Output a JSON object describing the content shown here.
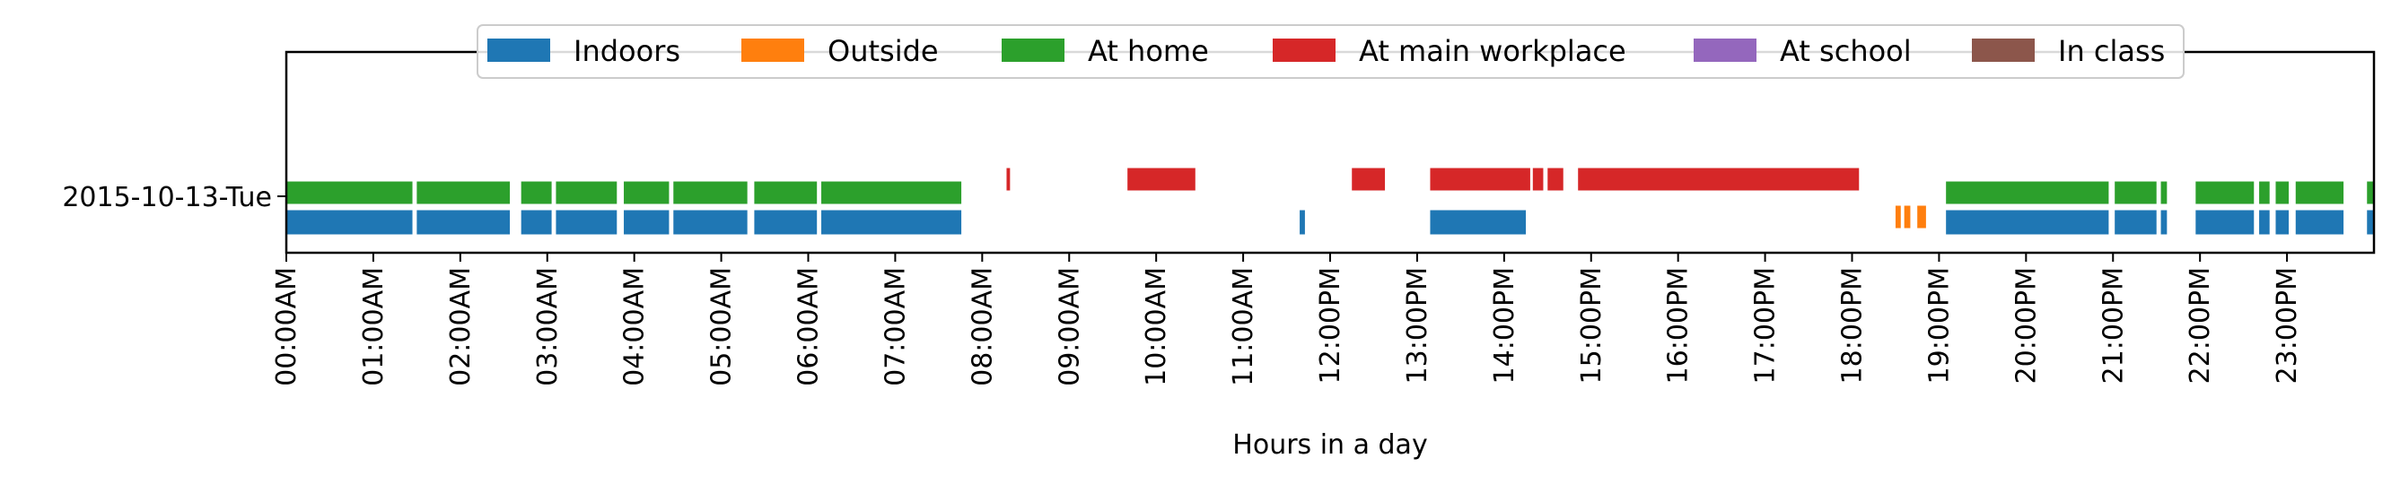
{
  "chart_data": {
    "type": "timeline",
    "title": "",
    "xlabel": "Hours in a day",
    "ylabel": "",
    "xlim": [
      0,
      24
    ],
    "x_ticks": [
      0,
      1,
      2,
      3,
      4,
      5,
      6,
      7,
      8,
      9,
      10,
      11,
      12,
      13,
      14,
      15,
      16,
      17,
      18,
      19,
      20,
      21,
      22,
      23
    ],
    "x_tick_labels": [
      "00:00AM",
      "01:00AM",
      "02:00AM",
      "03:00AM",
      "04:00AM",
      "05:00AM",
      "06:00AM",
      "07:00AM",
      "08:00AM",
      "09:00AM",
      "10:00AM",
      "11:00AM",
      "12:00PM",
      "13:00PM",
      "14:00PM",
      "15:00PM",
      "16:00PM",
      "17:00PM",
      "18:00PM",
      "19:00PM",
      "20:00PM",
      "21:00PM",
      "22:00PM",
      "23:00PM"
    ],
    "y_label": "2015-10-13-Tue",
    "legend_position": "top-center",
    "series": [
      {
        "name": "Indoors",
        "color": "#1f77b4",
        "row": 0,
        "intervals": [
          [
            0,
            1.45
          ],
          [
            1.5,
            2.57
          ],
          [
            2.7,
            3.05
          ],
          [
            3.1,
            3.8
          ],
          [
            3.88,
            4.4
          ],
          [
            4.45,
            5.3
          ],
          [
            5.38,
            6.1
          ],
          [
            6.15,
            7.76
          ],
          [
            11.65,
            11.71
          ],
          [
            13.15,
            14.25
          ],
          [
            19.08,
            20.95
          ],
          [
            21.02,
            21.5
          ],
          [
            21.55,
            21.62
          ],
          [
            21.95,
            22.62
          ],
          [
            22.68,
            22.8
          ],
          [
            22.87,
            23.02
          ],
          [
            23.1,
            23.65
          ],
          [
            23.92,
            24
          ]
        ]
      },
      {
        "name": "Outside",
        "color": "#ff7f0e",
        "row": 2,
        "intervals": [
          [
            18.5,
            18.56
          ],
          [
            18.6,
            18.67
          ],
          [
            18.75,
            18.85
          ]
        ]
      },
      {
        "name": "At home",
        "color": "#2ca02c",
        "row": 1,
        "intervals": [
          [
            0,
            1.45
          ],
          [
            1.5,
            2.57
          ],
          [
            2.7,
            3.05
          ],
          [
            3.1,
            3.8
          ],
          [
            3.88,
            4.4
          ],
          [
            4.45,
            5.3
          ],
          [
            5.38,
            6.1
          ],
          [
            6.15,
            7.76
          ],
          [
            19.08,
            20.95
          ],
          [
            21.02,
            21.5
          ],
          [
            21.55,
            21.62
          ],
          [
            21.95,
            22.62
          ],
          [
            22.68,
            22.8
          ],
          [
            22.87,
            23.02
          ],
          [
            23.1,
            23.65
          ],
          [
            23.92,
            24
          ]
        ]
      },
      {
        "name": "At main workplace",
        "color": "#d62728",
        "row": 3,
        "intervals": [
          [
            8.28,
            8.32
          ],
          [
            9.67,
            10.45
          ],
          [
            12.25,
            12.63
          ],
          [
            13.15,
            14.3
          ],
          [
            14.33,
            14.45
          ],
          [
            14.5,
            14.68
          ],
          [
            14.85,
            18.08
          ]
        ]
      },
      {
        "name": "At school",
        "color": "#9467bd",
        "row": 4,
        "intervals": []
      },
      {
        "name": "In class",
        "color": "#8c564b",
        "row": 5,
        "intervals": []
      }
    ]
  }
}
